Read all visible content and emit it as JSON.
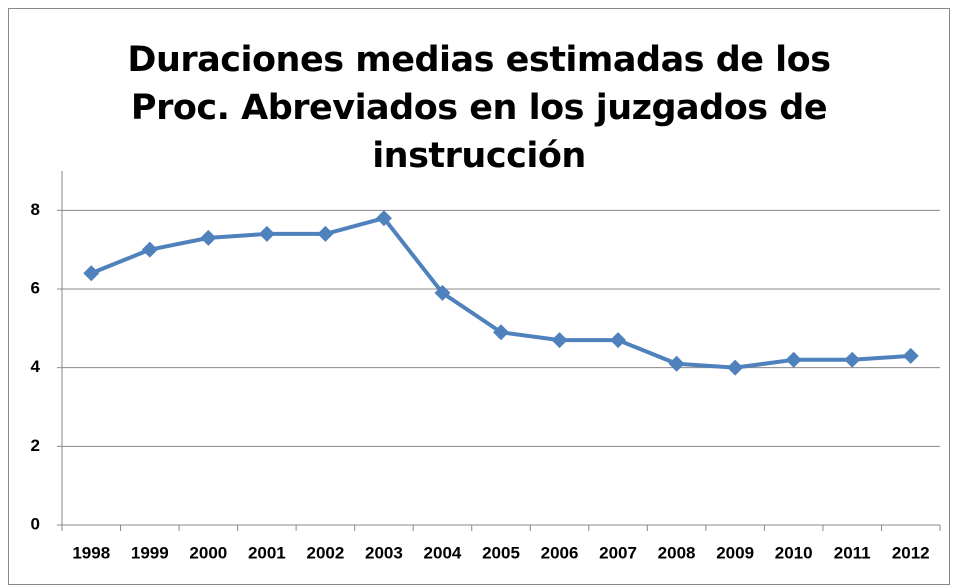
{
  "chart_data": {
    "type": "line",
    "title": "Duraciones medias estimadas de los Proc. Abreviados en los juzgados de instrucción",
    "categories": [
      "1998",
      "1999",
      "2000",
      "2001",
      "2002",
      "2003",
      "2004",
      "2005",
      "2006",
      "2007",
      "2008",
      "2009",
      "2010",
      "2011",
      "2012"
    ],
    "values": [
      6.4,
      7.0,
      7.3,
      7.4,
      7.4,
      7.8,
      5.9,
      4.9,
      4.7,
      4.7,
      4.1,
      4.0,
      4.2,
      4.2,
      4.3
    ],
    "color": "#4f81bd",
    "ylim": [
      0,
      9
    ],
    "yticks": [
      0,
      2,
      4,
      6,
      8
    ],
    "grid": true
  }
}
